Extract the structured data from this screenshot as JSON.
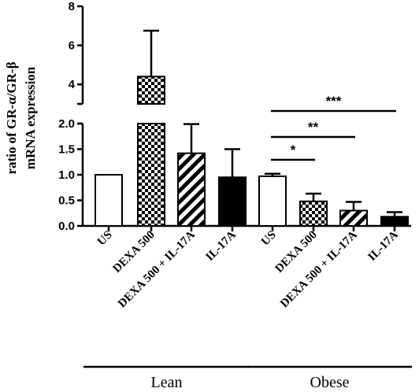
{
  "chart_data": {
    "type": "bar",
    "ylabel_line1": "ratio of GR-α/GR-β",
    "ylabel_line2": "mRNA expression",
    "y_axis": {
      "broken": true,
      "lower_range": [
        0,
        2.0
      ],
      "upper_range": [
        3,
        8
      ],
      "lower_ticks": [
        "0.0",
        "0.5",
        "1.0",
        "1.5",
        "2.0"
      ],
      "upper_ticks": [
        "4",
        "6",
        "8"
      ]
    },
    "categories": [
      "US",
      "DEXA 500",
      "DEXA 500 + IL-17A",
      "IL-17A",
      "US",
      "DEXA 500",
      "DEXA 500 + IL-17A",
      "IL-17A"
    ],
    "values": [
      1.0,
      4.4,
      1.42,
      0.95,
      0.97,
      0.48,
      0.3,
      0.18
    ],
    "errors": [
      0.0,
      2.35,
      0.57,
      0.55,
      0.05,
      0.15,
      0.17,
      0.09
    ],
    "fills": [
      "white",
      "checker",
      "hatch",
      "solid",
      "white",
      "checker",
      "hatch",
      "solid"
    ],
    "groups": [
      {
        "label": "Lean",
        "from": 0,
        "to": 3
      },
      {
        "label": "Obese",
        "from": 4,
        "to": 7
      }
    ],
    "significance": [
      {
        "from": 4,
        "to": 5,
        "label": "*"
      },
      {
        "from": 4,
        "to": 6,
        "label": "**"
      },
      {
        "from": 4,
        "to": 7,
        "label": "***"
      }
    ],
    "colors": {
      "ink": "#000000",
      "background": "#ffffff"
    }
  }
}
